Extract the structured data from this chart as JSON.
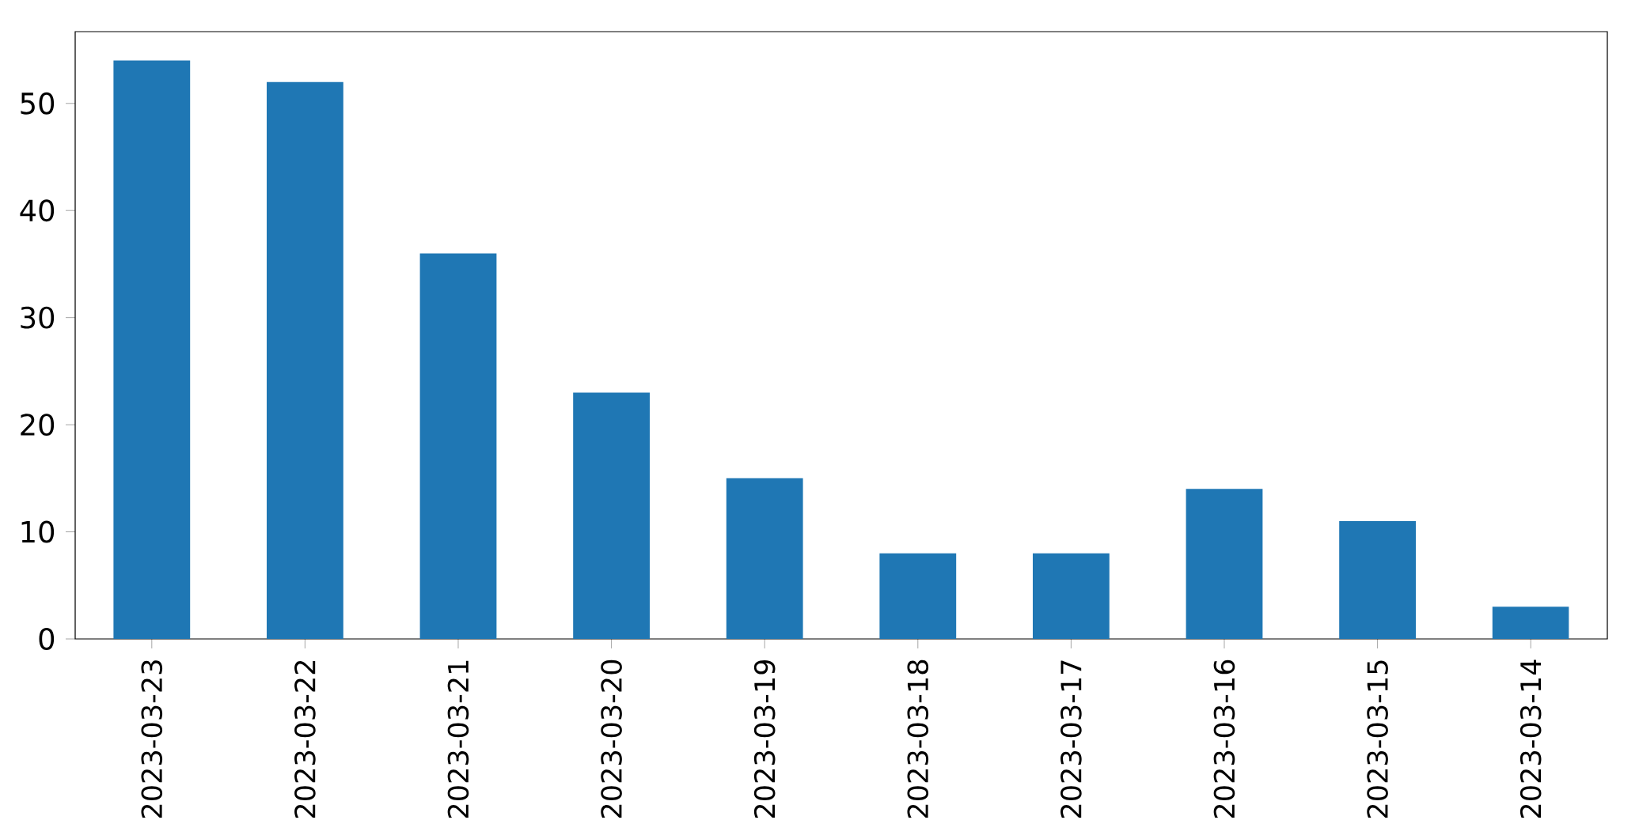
{
  "chart_data": {
    "type": "bar",
    "categories": [
      "2023-03-23",
      "2023-03-22",
      "2023-03-21",
      "2023-03-20",
      "2023-03-19",
      "2023-03-18",
      "2023-03-17",
      "2023-03-16",
      "2023-03-15",
      "2023-03-14"
    ],
    "values": [
      54,
      52,
      36,
      23,
      15,
      8,
      8,
      14,
      11,
      3
    ],
    "color": "#1f77b4",
    "ylim": [
      0,
      56.7
    ],
    "yticks": [
      0,
      10,
      20,
      30,
      40,
      50
    ]
  }
}
